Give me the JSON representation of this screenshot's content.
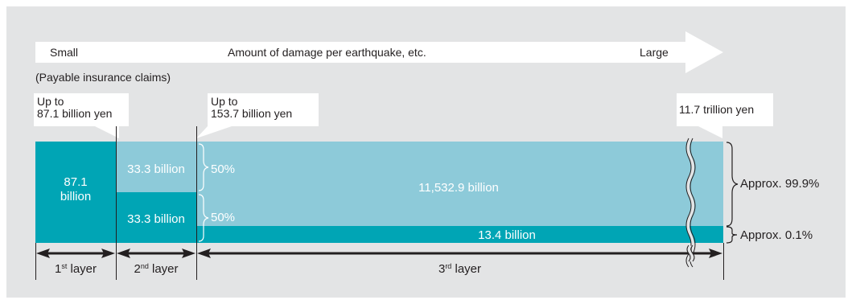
{
  "arrow": {
    "small_label": "Small",
    "center_label": "Amount of damage per earthquake, etc.",
    "large_label": "Large"
  },
  "subtitle": "(Payable insurance claims)",
  "callouts": {
    "first": {
      "line1": "Up to",
      "line2": "87.1 billion yen"
    },
    "second": {
      "line1": "Up to",
      "line2": "153.7 billion yen"
    },
    "total": {
      "text": "11.7 trillion yen"
    }
  },
  "blocks": {
    "layer1": {
      "line1": "87.1",
      "line2": "billion"
    },
    "layer2_top": "33.3 billion",
    "layer2_bottom": "33.3 billion",
    "pct_top": "50%",
    "pct_bottom": "50%",
    "layer3_main": "11,532.9 billion",
    "layer3_bottom": "13.4 billion"
  },
  "brackets": {
    "upper": "Approx. 99.9%",
    "lower": "Approx. 0.1%"
  },
  "layers": {
    "first": {
      "num": "1",
      "sup": "st",
      "word": " layer"
    },
    "second": {
      "num": "2",
      "sup": "nd",
      "word": " layer"
    },
    "third": {
      "num": "3",
      "sup": "rd",
      "word": " layer"
    }
  },
  "colors": {
    "dark_teal": "#00a5b5",
    "light_teal": "#8dcad9",
    "background": "#e3e4e5"
  }
}
